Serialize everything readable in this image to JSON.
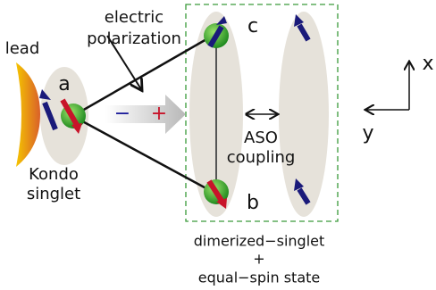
{
  "labels": {
    "lead": "lead",
    "polarization": [
      "electric",
      "polarization"
    ],
    "site_a": "a",
    "kondo": [
      "Kondo",
      "singlet"
    ],
    "minus": "−",
    "plus": "+",
    "site_c": "c",
    "site_b": "b",
    "aso": [
      "ASO",
      "coupling"
    ],
    "axis_x": "x",
    "axis_y": "y",
    "state": [
      "dimerized−singlet",
      "+",
      "equal−spin state"
    ]
  }
}
